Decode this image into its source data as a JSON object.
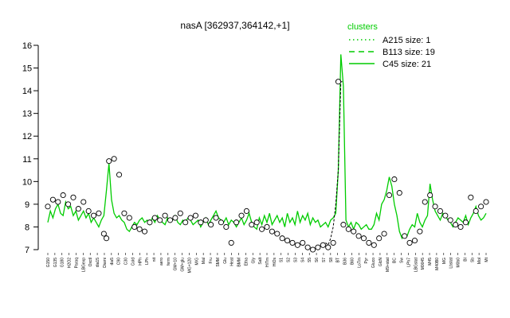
{
  "chart_data": {
    "type": "line",
    "title": "nasA [362937,364142,+1]",
    "xlabel": "",
    "ylabel": "",
    "ylim": [
      7,
      16
    ],
    "yticks": [
      7,
      8,
      9,
      10,
      11,
      12,
      13,
      14,
      15,
      16
    ],
    "legend": {
      "title": "clusters",
      "placement": "top-right",
      "entries": [
        "A215 size: 1",
        "B113 size: 19",
        "C45 size: 21"
      ]
    },
    "colors": {
      "cluster_line": "#00cc00",
      "highlight": "#000000",
      "points_fill": "#ffffff"
    },
    "x_tick_labels": [
      "G150",
      "G135",
      "G180",
      "H2O2",
      "Paraq",
      "LBGexp",
      "Oxctl",
      "dia15",
      "Diami",
      "dia5",
      "C90",
      "C30",
      "Cold",
      "HPh",
      "LPh",
      "nit",
      "aero",
      "ferm",
      "GM+10",
      "GM+glu",
      "MG+120",
      "M/G",
      "Mal",
      "Fru",
      "SMM",
      "Glu",
      "Heat",
      "BMM",
      "Etha",
      "Gly",
      "Salt",
      "HiTm",
      "HiOs",
      "S1",
      "S2",
      "S3",
      "S4",
      "S5",
      "S6",
      "S7",
      "S8",
      "BT",
      "B36",
      "B60",
      "LoTm",
      "Pyr",
      "Gluco",
      "GlcN",
      "M9+stat",
      "BC",
      "Sw",
      "LPh7",
      "LBGstat",
      "M0045",
      "M45",
      "M40B0",
      "MG",
      "Lbstat",
      "M0b0",
      "BI",
      "Sb",
      "Mol",
      "Mt"
    ],
    "series": [
      {
        "name": "C45 size: 21",
        "x": [
          1,
          2,
          3,
          4,
          5,
          6,
          7,
          8,
          9,
          10,
          11,
          12,
          13,
          14,
          15,
          16,
          17,
          18,
          19,
          20,
          21,
          22,
          23,
          24,
          25,
          26,
          27,
          28,
          29,
          30,
          31,
          32,
          33,
          34,
          35,
          36,
          37,
          38,
          39,
          40,
          41,
          42,
          43,
          44,
          45,
          46,
          47,
          48,
          49,
          50,
          51,
          52,
          53,
          54,
          55,
          56,
          57,
          58,
          59,
          60,
          61,
          62,
          63,
          64,
          65,
          66,
          67,
          68,
          69,
          70,
          71,
          72,
          73,
          74,
          75,
          76,
          77,
          78,
          79,
          80,
          81,
          82,
          83,
          84,
          85,
          86,
          87,
          88,
          89,
          90,
          91,
          92,
          93,
          94,
          95,
          96,
          97,
          98,
          99,
          100,
          101,
          102,
          103,
          104,
          105,
          106,
          107,
          108,
          109,
          110,
          111,
          112,
          113,
          114,
          115,
          116,
          117,
          118,
          119,
          120,
          121,
          122,
          123,
          124,
          125,
          126,
          127,
          128,
          129,
          130,
          131,
          132,
          133,
          134,
          135,
          136,
          137,
          138,
          139,
          140,
          141,
          142,
          143,
          144,
          145,
          146,
          147,
          148,
          149,
          150,
          151,
          152,
          153,
          154,
          155,
          156,
          157,
          158,
          159,
          160,
          161,
          162,
          163,
          164,
          165,
          166,
          167,
          168,
          169,
          170,
          171,
          172,
          173
        ],
        "values": [
          8.2,
          8.7,
          8.4,
          8.8,
          9.0,
          8.6,
          8.5,
          9.1,
          8.8,
          8.9,
          8.5,
          8.7,
          8.3,
          8.5,
          8.7,
          8.4,
          8.6,
          8.2,
          8.4,
          8.2,
          8.0,
          8.3,
          8.5,
          9.6,
          10.8,
          9.2,
          8.6,
          8.4,
          8.5,
          8.3,
          8.2,
          7.9,
          7.8,
          8.0,
          8.2,
          8.1,
          8.3,
          8.4,
          8.2,
          8.3,
          8.1,
          8.4,
          8.2,
          8.5,
          8.3,
          8.2,
          8.1,
          8.4,
          8.2,
          8.3,
          8.5,
          8.2,
          8.1,
          8.3,
          8.2,
          8.4,
          8.3,
          8.1,
          8.2,
          8.3,
          8.0,
          8.2,
          8.4,
          8.1,
          8.3,
          8.5,
          8.7,
          8.4,
          8.3,
          8.2,
          8.4,
          8.1,
          8.3,
          8.2,
          8.0,
          8.2,
          8.4,
          8.1,
          8.3,
          8.6,
          8.2,
          8.0,
          7.9,
          8.4,
          8.1,
          8.5,
          8.2,
          8.6,
          8.1,
          8.3,
          8.5,
          8.2,
          8.4,
          8.0,
          8.6,
          8.2,
          8.4,
          8.1,
          8.7,
          8.2,
          8.5,
          8.3,
          8.6,
          8.1,
          8.4,
          8.2,
          8.3,
          8.0,
          8.1,
          8.2,
          8.0,
          8.3,
          8.4,
          8.6,
          10.5,
          15.6,
          14.2,
          8.3,
          8.0,
          8.2,
          7.9,
          8.2,
          8.1,
          7.9,
          8.0,
          8.1,
          7.9,
          7.9,
          8.1,
          8.6,
          8.3,
          9.0,
          9.2,
          9.6,
          10.2,
          9.8,
          9.0,
          8.5,
          7.8,
          7.5,
          7.7,
          7.6,
          7.9,
          8.1,
          8.0,
          8.6,
          8.2,
          8.0,
          8.3,
          8.5,
          9.9,
          9.2,
          8.7,
          8.5,
          8.3,
          8.6,
          8.5,
          8.3,
          8.2,
          8.0,
          8.2,
          8.4,
          8.3,
          8.2,
          8.5,
          8.1,
          8.4,
          8.6,
          8.9,
          8.5,
          8.3,
          8.4,
          8.6
        ]
      },
      {
        "name": "highlight",
        "x": [
          110,
          111,
          112,
          113,
          114,
          115,
          116,
          117
        ],
        "values": [
          7.3,
          7.2,
          7.5,
          8.0,
          9.0,
          10.5,
          14.4,
          14.4
        ]
      }
    ],
    "points": {
      "x": [
        1,
        3,
        5,
        7,
        9,
        11,
        13,
        15,
        17,
        19,
        21,
        23,
        24,
        25,
        27,
        29,
        31,
        33,
        35,
        37,
        39,
        41,
        43,
        45,
        47,
        49,
        51,
        53,
        55,
        57,
        59,
        61,
        63,
        65,
        67,
        69,
        71,
        73,
        75,
        77,
        79,
        81,
        83,
        85,
        87,
        89,
        91,
        93,
        95,
        97,
        99,
        101,
        103,
        105,
        107,
        109,
        111,
        113,
        115,
        117,
        119,
        121,
        123,
        125,
        127,
        129,
        131,
        133,
        135,
        137,
        139,
        141,
        143,
        145,
        147,
        149,
        151,
        153,
        155,
        157,
        159,
        161,
        163,
        165,
        167,
        169,
        171,
        173
      ],
      "values": [
        8.9,
        9.2,
        9.1,
        9.4,
        9.0,
        9.3,
        8.8,
        9.1,
        8.7,
        8.5,
        8.6,
        7.7,
        7.5,
        10.9,
        11.0,
        10.3,
        8.6,
        8.4,
        8.0,
        7.9,
        7.8,
        8.2,
        8.4,
        8.3,
        8.5,
        8.3,
        8.4,
        8.6,
        8.2,
        8.4,
        8.5,
        8.2,
        8.3,
        8.1,
        8.4,
        8.2,
        8.0,
        7.3,
        8.2,
        8.5,
        8.7,
        8.1,
        8.2,
        7.9,
        8.0,
        7.8,
        7.7,
        7.5,
        7.4,
        7.3,
        7.2,
        7.3,
        7.1,
        7.0,
        7.1,
        7.2,
        7.1,
        7.3,
        14.4,
        8.1,
        7.9,
        7.8,
        7.6,
        7.5,
        7.3,
        7.2,
        7.5,
        7.7,
        9.4,
        10.1,
        9.5,
        7.6,
        7.3,
        7.4,
        7.8,
        9.1,
        9.4,
        8.9,
        8.7,
        8.5,
        8.3,
        8.1,
        8.0,
        8.2,
        9.3,
        8.7,
        8.9,
        9.1
      ]
    }
  }
}
